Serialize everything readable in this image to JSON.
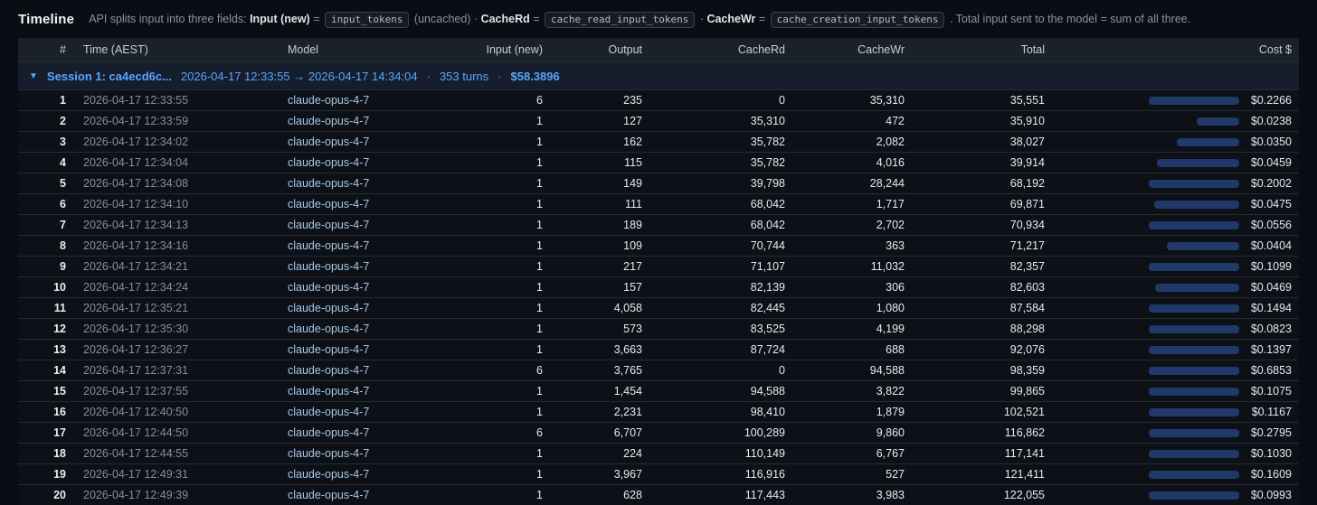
{
  "header": {
    "title": "Timeline",
    "description": [
      {
        "t": "text",
        "v": "API splits input into three fields: "
      },
      {
        "t": "bold",
        "v": "Input (new)"
      },
      {
        "t": "text",
        "v": " = "
      },
      {
        "t": "chip",
        "v": "input_tokens"
      },
      {
        "t": "text",
        "v": " (uncached) · "
      },
      {
        "t": "bold",
        "v": "CacheRd"
      },
      {
        "t": "text",
        "v": " = "
      },
      {
        "t": "chip",
        "v": "cache_read_input_tokens"
      },
      {
        "t": "text",
        "v": " · "
      },
      {
        "t": "bold",
        "v": "CacheWr"
      },
      {
        "t": "text",
        "v": " = "
      },
      {
        "t": "chip",
        "v": "cache_creation_input_tokens"
      },
      {
        "t": "text",
        "v": " . Total input sent to the model = sum of all three."
      }
    ]
  },
  "session": {
    "collapse_icon": "▼",
    "label": "Session 1: ca4ecd6c...",
    "range": "2026-04-17 12:33:55 → 2026-04-17 14:34:04",
    "separator": "·",
    "turns": "353 turns",
    "cost": "$58.3896"
  },
  "table": {
    "columns": [
      "#",
      "Time (AEST)",
      "Model",
      "Input (new)",
      "Output",
      "CacheRd",
      "CacheWr",
      "Total",
      "Cost $"
    ],
    "rows": [
      {
        "num": "1",
        "time": "2026-04-17 12:33:55",
        "model": "claude-opus-4-7",
        "input": "6",
        "output": "235",
        "cache_rd": "0",
        "cache_wr": "35,310",
        "total": "35,551",
        "cost": "$0.2266"
      },
      {
        "num": "2",
        "time": "2026-04-17 12:33:59",
        "model": "claude-opus-4-7",
        "input": "1",
        "output": "127",
        "cache_rd": "35,310",
        "cache_wr": "472",
        "total": "35,910",
        "cost": "$0.0238"
      },
      {
        "num": "3",
        "time": "2026-04-17 12:34:02",
        "model": "claude-opus-4-7",
        "input": "1",
        "output": "162",
        "cache_rd": "35,782",
        "cache_wr": "2,082",
        "total": "38,027",
        "cost": "$0.0350"
      },
      {
        "num": "4",
        "time": "2026-04-17 12:34:04",
        "model": "claude-opus-4-7",
        "input": "1",
        "output": "115",
        "cache_rd": "35,782",
        "cache_wr": "4,016",
        "total": "39,914",
        "cost": "$0.0459"
      },
      {
        "num": "5",
        "time": "2026-04-17 12:34:08",
        "model": "claude-opus-4-7",
        "input": "1",
        "output": "149",
        "cache_rd": "39,798",
        "cache_wr": "28,244",
        "total": "68,192",
        "cost": "$0.2002"
      },
      {
        "num": "6",
        "time": "2026-04-17 12:34:10",
        "model": "claude-opus-4-7",
        "input": "1",
        "output": "111",
        "cache_rd": "68,042",
        "cache_wr": "1,717",
        "total": "69,871",
        "cost": "$0.0475"
      },
      {
        "num": "7",
        "time": "2026-04-17 12:34:13",
        "model": "claude-opus-4-7",
        "input": "1",
        "output": "189",
        "cache_rd": "68,042",
        "cache_wr": "2,702",
        "total": "70,934",
        "cost": "$0.0556"
      },
      {
        "num": "8",
        "time": "2026-04-17 12:34:16",
        "model": "claude-opus-4-7",
        "input": "1",
        "output": "109",
        "cache_rd": "70,744",
        "cache_wr": "363",
        "total": "71,217",
        "cost": "$0.0404"
      },
      {
        "num": "9",
        "time": "2026-04-17 12:34:21",
        "model": "claude-opus-4-7",
        "input": "1",
        "output": "217",
        "cache_rd": "71,107",
        "cache_wr": "11,032",
        "total": "82,357",
        "cost": "$0.1099"
      },
      {
        "num": "10",
        "time": "2026-04-17 12:34:24",
        "model": "claude-opus-4-7",
        "input": "1",
        "output": "157",
        "cache_rd": "82,139",
        "cache_wr": "306",
        "total": "82,603",
        "cost": "$0.0469"
      },
      {
        "num": "11",
        "time": "2026-04-17 12:35:21",
        "model": "claude-opus-4-7",
        "input": "1",
        "output": "4,058",
        "cache_rd": "82,445",
        "cache_wr": "1,080",
        "total": "87,584",
        "cost": "$0.1494"
      },
      {
        "num": "12",
        "time": "2026-04-17 12:35:30",
        "model": "claude-opus-4-7",
        "input": "1",
        "output": "573",
        "cache_rd": "83,525",
        "cache_wr": "4,199",
        "total": "88,298",
        "cost": "$0.0823"
      },
      {
        "num": "13",
        "time": "2026-04-17 12:36:27",
        "model": "claude-opus-4-7",
        "input": "1",
        "output": "3,663",
        "cache_rd": "87,724",
        "cache_wr": "688",
        "total": "92,076",
        "cost": "$0.1397"
      },
      {
        "num": "14",
        "time": "2026-04-17 12:37:31",
        "model": "claude-opus-4-7",
        "input": "6",
        "output": "3,765",
        "cache_rd": "0",
        "cache_wr": "94,588",
        "total": "98,359",
        "cost": "$0.6853"
      },
      {
        "num": "15",
        "time": "2026-04-17 12:37:55",
        "model": "claude-opus-4-7",
        "input": "1",
        "output": "1,454",
        "cache_rd": "94,588",
        "cache_wr": "3,822",
        "total": "99,865",
        "cost": "$0.1075"
      },
      {
        "num": "16",
        "time": "2026-04-17 12:40:50",
        "model": "claude-opus-4-7",
        "input": "1",
        "output": "2,231",
        "cache_rd": "98,410",
        "cache_wr": "1,879",
        "total": "102,521",
        "cost": "$0.1167"
      },
      {
        "num": "17",
        "time": "2026-04-17 12:44:50",
        "model": "claude-opus-4-7",
        "input": "6",
        "output": "6,707",
        "cache_rd": "100,289",
        "cache_wr": "9,860",
        "total": "116,862",
        "cost": "$0.2795"
      },
      {
        "num": "18",
        "time": "2026-04-17 12:44:55",
        "model": "claude-opus-4-7",
        "input": "1",
        "output": "224",
        "cache_rd": "110,149",
        "cache_wr": "6,767",
        "total": "117,141",
        "cost": "$0.1030"
      },
      {
        "num": "19",
        "time": "2026-04-17 12:49:31",
        "model": "claude-opus-4-7",
        "input": "1",
        "output": "3,967",
        "cache_rd": "116,916",
        "cache_wr": "527",
        "total": "121,411",
        "cost": "$0.1609"
      },
      {
        "num": "20",
        "time": "2026-04-17 12:49:39",
        "model": "claude-opus-4-7",
        "input": "1",
        "output": "628",
        "cache_rd": "117,443",
        "cache_wr": "3,983",
        "total": "122,055",
        "cost": "$0.0993"
      }
    ]
  },
  "colors": {
    "accent_blue": "#58a6ff",
    "bar_fill": "#20396a",
    "model_text": "#a9c6e4"
  }
}
